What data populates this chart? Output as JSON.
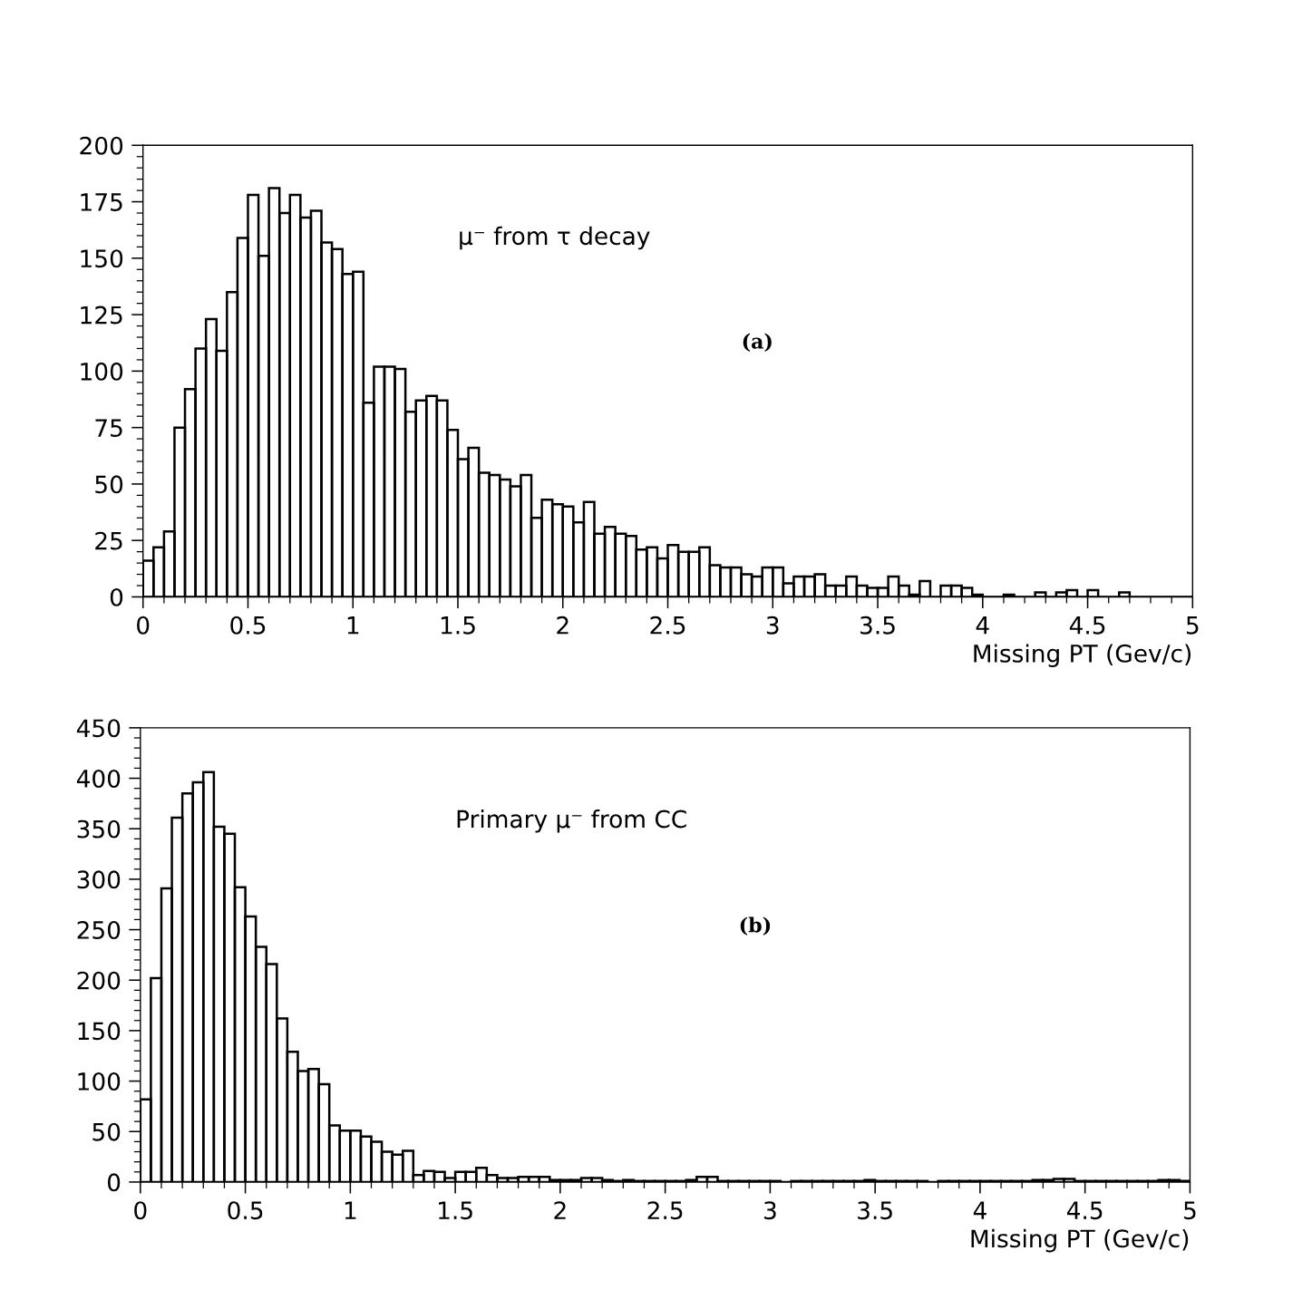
{
  "chart_data": [
    {
      "type": "histogram",
      "xlabel": "Missing PT (Gev/c)",
      "annotations": [
        "μ⁻ from τ decay",
        "(a)"
      ],
      "color": "#000000",
      "bins": [
        0,
        0.05,
        0.1,
        0.15,
        0.2,
        0.25,
        0.3,
        0.35,
        0.4,
        0.45,
        0.5,
        0.55,
        0.6,
        0.65,
        0.7,
        0.75,
        0.8,
        0.85,
        0.9,
        0.95,
        1,
        1.05,
        1.1,
        1.15,
        1.2,
        1.25,
        1.3,
        1.35,
        1.4,
        1.45,
        1.5,
        1.55,
        1.6,
        1.65,
        1.7,
        1.75,
        1.8,
        1.85,
        1.9,
        1.95,
        2,
        2.05,
        2.1,
        2.15,
        2.2,
        2.25,
        2.3,
        2.35,
        2.4,
        2.45,
        2.5,
        2.55,
        2.6,
        2.65,
        2.7,
        2.75,
        2.8,
        2.85,
        2.9,
        2.95,
        3,
        3.05,
        3.1,
        3.15,
        3.2,
        3.25,
        3.3,
        3.35,
        3.4,
        3.45,
        3.5,
        3.55,
        3.6,
        3.65,
        3.7,
        3.75,
        3.8,
        3.85,
        3.9,
        3.95,
        4,
        4.05,
        4.1,
        4.15,
        4.2,
        4.25,
        4.3,
        4.35,
        4.4,
        4.45,
        4.5,
        4.55,
        4.6,
        4.65,
        4.7,
        4.75,
        4.8,
        4.85,
        4.9,
        4.95,
        5
      ],
      "values": [
        16,
        22,
        29,
        75,
        92,
        110,
        123,
        109,
        135,
        159,
        178,
        151,
        181,
        170,
        178,
        168,
        171,
        157,
        154,
        143,
        144,
        86,
        102,
        102,
        101,
        82,
        87,
        89,
        87,
        74,
        61,
        66,
        55,
        54,
        52,
        49,
        54,
        35,
        43,
        41,
        40,
        33,
        42,
        28,
        31,
        28,
        27,
        21,
        22,
        17,
        23,
        20,
        20,
        22,
        14,
        13,
        13,
        10,
        9,
        13,
        13,
        6,
        9,
        9,
        10,
        5,
        5,
        9,
        5,
        4,
        4,
        9,
        5,
        1,
        7,
        0,
        5,
        5,
        4,
        1,
        0,
        0,
        1,
        0,
        0,
        2,
        0,
        2,
        3,
        0,
        3,
        0,
        0,
        2,
        0,
        0,
        0,
        0,
        0,
        0
      ],
      "xlim": [
        0,
        5
      ],
      "xticks": [
        0,
        0.5,
        1,
        1.5,
        2,
        2.5,
        3,
        3.5,
        4,
        4.5,
        5
      ],
      "ylim": [
        0,
        200
      ],
      "yticks": [
        0,
        25,
        50,
        75,
        100,
        125,
        150,
        175,
        200
      ],
      "grid": false
    },
    {
      "type": "histogram",
      "xlabel": "Missing PT (Gev/c)",
      "annotations": [
        "Primary μ⁻ from CC",
        "(b)"
      ],
      "color": "#000000",
      "bins": [
        0,
        0.05,
        0.1,
        0.15,
        0.2,
        0.25,
        0.3,
        0.35,
        0.4,
        0.45,
        0.5,
        0.55,
        0.6,
        0.65,
        0.7,
        0.75,
        0.8,
        0.85,
        0.9,
        0.95,
        1,
        1.05,
        1.1,
        1.15,
        1.2,
        1.25,
        1.3,
        1.35,
        1.4,
        1.45,
        1.5,
        1.55,
        1.6,
        1.65,
        1.7,
        1.75,
        1.8,
        1.85,
        1.9,
        1.95,
        2,
        2.05,
        2.1,
        2.15,
        2.2,
        2.25,
        2.3,
        2.35,
        2.4,
        2.45,
        2.5,
        2.55,
        2.6,
        2.65,
        2.7,
        2.75,
        2.8,
        2.85,
        2.9,
        2.95,
        3,
        3.05,
        3.1,
        3.15,
        3.2,
        3.25,
        3.3,
        3.35,
        3.4,
        3.45,
        3.5,
        3.55,
        3.6,
        3.65,
        3.7,
        3.75,
        3.8,
        3.85,
        3.9,
        3.95,
        4,
        4.05,
        4.1,
        4.15,
        4.2,
        4.25,
        4.3,
        4.35,
        4.4,
        4.45,
        4.5,
        4.55,
        4.6,
        4.65,
        4.7,
        4.75,
        4.8,
        4.85,
        4.9,
        4.95,
        5
      ],
      "values": [
        82,
        202,
        291,
        361,
        385,
        396,
        406,
        352,
        345,
        292,
        263,
        233,
        216,
        162,
        129,
        110,
        112,
        97,
        56,
        51,
        51,
        45,
        40,
        30,
        27,
        31,
        7,
        11,
        10,
        4,
        10,
        10,
        14,
        7,
        4,
        4,
        5,
        5,
        5,
        2,
        2,
        2,
        4,
        4,
        2,
        1,
        2,
        1,
        1,
        1,
        1,
        1,
        2,
        5,
        5,
        1,
        1,
        1,
        1,
        1,
        1,
        0,
        1,
        1,
        1,
        1,
        1,
        1,
        1,
        2,
        1,
        1,
        1,
        1,
        1,
        0,
        1,
        1,
        1,
        1,
        1,
        1,
        1,
        1,
        1,
        2,
        2,
        3,
        3,
        1,
        1,
        1,
        1,
        1,
        1,
        1,
        1,
        2,
        2,
        1
      ],
      "xlim": [
        0,
        5
      ],
      "xticks": [
        0,
        0.5,
        1,
        1.5,
        2,
        2.5,
        3,
        3.5,
        4,
        4.5,
        5
      ],
      "ylim": [
        0,
        450
      ],
      "yticks": [
        0,
        50,
        100,
        150,
        200,
        250,
        300,
        350,
        400,
        450
      ],
      "grid": false
    }
  ]
}
